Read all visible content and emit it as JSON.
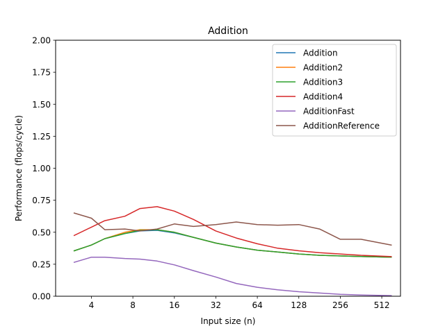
{
  "chart_data": {
    "type": "line",
    "title": "Addition",
    "xlabel": "Input size (n)",
    "ylabel": "Performance (flops/cycle)",
    "x_scale": "log2",
    "xlim": [
      2.2,
      700
    ],
    "ylim": [
      0,
      2.0
    ],
    "x_ticks": [
      4,
      8,
      16,
      32,
      64,
      128,
      256,
      512
    ],
    "x_tick_labels": [
      "4",
      "8",
      "16",
      "32",
      "64",
      "128",
      "256",
      "512"
    ],
    "y_ticks": [
      0,
      0.25,
      0.5,
      0.75,
      1.0,
      1.25,
      1.5,
      1.75,
      2.0
    ],
    "y_tick_labels": [
      "0.00",
      "0.25",
      "0.50",
      "0.75",
      "1.00",
      "1.25",
      "1.50",
      "1.75",
      "2.00"
    ],
    "grid": false,
    "legend_position": "top-right",
    "x": [
      3,
      4,
      5,
      7,
      9,
      12,
      16,
      22,
      32,
      45,
      64,
      90,
      128,
      181,
      256,
      362,
      600
    ],
    "series": [
      {
        "name": "Addition",
        "color": "#1f77b4",
        "values": [
          0.355,
          0.4,
          0.45,
          0.49,
          0.51,
          0.515,
          0.495,
          0.46,
          0.415,
          0.385,
          0.36,
          0.345,
          0.33,
          0.32,
          0.315,
          0.31,
          0.305
        ]
      },
      {
        "name": "Addition2",
        "color": "#ff7f0e",
        "values": [
          0.355,
          0.4,
          0.45,
          0.5,
          0.52,
          0.52,
          0.5,
          0.46,
          0.415,
          0.385,
          0.36,
          0.345,
          0.33,
          0.32,
          0.315,
          0.31,
          0.305
        ]
      },
      {
        "name": "Addition3",
        "color": "#2ca02c",
        "values": [
          0.355,
          0.4,
          0.45,
          0.49,
          0.515,
          0.52,
          0.5,
          0.46,
          0.415,
          0.385,
          0.36,
          0.345,
          0.33,
          0.32,
          0.315,
          0.31,
          0.305
        ]
      },
      {
        "name": "Addition4",
        "color": "#d62728",
        "values": [
          0.475,
          0.54,
          0.59,
          0.625,
          0.685,
          0.7,
          0.665,
          0.6,
          0.51,
          0.455,
          0.41,
          0.375,
          0.355,
          0.34,
          0.33,
          0.32,
          0.31
        ]
      },
      {
        "name": "AdditionFast",
        "color": "#9467bd",
        "values": [
          0.265,
          0.305,
          0.305,
          0.295,
          0.29,
          0.275,
          0.245,
          0.2,
          0.15,
          0.1,
          0.07,
          0.05,
          0.035,
          0.025,
          0.015,
          0.01,
          0.005
        ]
      },
      {
        "name": "AdditionReference",
        "color": "#8c564b",
        "values": [
          0.65,
          0.61,
          0.52,
          0.525,
          0.51,
          0.525,
          0.565,
          0.545,
          0.56,
          0.58,
          0.56,
          0.555,
          0.56,
          0.525,
          0.445,
          0.445,
          0.4
        ]
      }
    ]
  }
}
